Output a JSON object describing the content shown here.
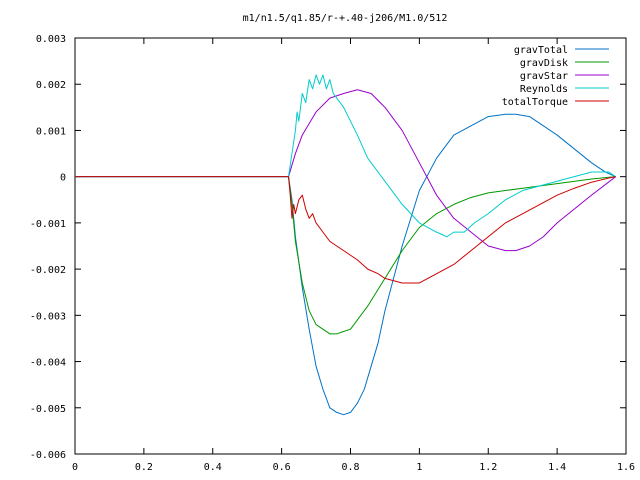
{
  "chart_data": {
    "type": "line",
    "title": "m1/n1.5/q1.85/r-+.40-j206/M1.0/512",
    "xlabel": "",
    "ylabel": "",
    "xlim": [
      0,
      1.6
    ],
    "ylim": [
      -0.006,
      0.003
    ],
    "x_ticks": [
      "0",
      "0.2",
      "0.4",
      "0.6",
      "0.8",
      "1",
      "1.2",
      "1.4",
      "1.6"
    ],
    "y_ticks": [
      "0.003",
      "0.002",
      "0.001",
      "0",
      "-0.001",
      "-0.002",
      "-0.003",
      "-0.004",
      "-0.005",
      "-0.006"
    ],
    "grid": false,
    "legend_position": "top-right",
    "series": [
      {
        "name": "gravTotal",
        "color": "#0072c6",
        "x": [
          0,
          0.6,
          0.62,
          0.63,
          0.64,
          0.66,
          0.68,
          0.7,
          0.72,
          0.74,
          0.76,
          0.78,
          0.8,
          0.82,
          0.84,
          0.86,
          0.88,
          0.9,
          0.95,
          1.0,
          1.05,
          1.1,
          1.15,
          1.2,
          1.25,
          1.28,
          1.32,
          1.36,
          1.4,
          1.45,
          1.5,
          1.54,
          1.57
        ],
        "y": [
          0,
          0,
          0,
          -0.0005,
          -0.0013,
          -0.0024,
          -0.0033,
          -0.0041,
          -0.0046,
          -0.005,
          -0.0051,
          -0.00515,
          -0.0051,
          -0.0049,
          -0.0046,
          -0.0041,
          -0.0036,
          -0.0029,
          -0.0015,
          -0.0003,
          0.0004,
          0.0009,
          0.0011,
          0.0013,
          0.00135,
          0.00135,
          0.0013,
          0.0011,
          0.0009,
          0.0006,
          0.0003,
          0.0001,
          0
        ]
      },
      {
        "name": "gravDisk",
        "color": "#009900",
        "x": [
          0,
          0.6,
          0.62,
          0.63,
          0.64,
          0.66,
          0.68,
          0.7,
          0.72,
          0.74,
          0.76,
          0.78,
          0.8,
          0.82,
          0.85,
          0.9,
          0.95,
          1.0,
          1.05,
          1.1,
          1.15,
          1.2,
          1.3,
          1.4,
          1.5,
          1.57
        ],
        "y": [
          0,
          0,
          0,
          -0.0006,
          -0.0014,
          -0.0023,
          -0.0029,
          -0.0032,
          -0.0033,
          -0.0034,
          -0.0034,
          -0.00335,
          -0.0033,
          -0.0031,
          -0.0028,
          -0.0022,
          -0.0016,
          -0.0011,
          -0.0008,
          -0.0006,
          -0.00045,
          -0.00035,
          -0.00025,
          -0.00015,
          -5e-05,
          0
        ]
      },
      {
        "name": "gravStar",
        "color": "#9900cc",
        "x": [
          0,
          0.6,
          0.62,
          0.64,
          0.66,
          0.7,
          0.74,
          0.78,
          0.82,
          0.86,
          0.9,
          0.95,
          1.0,
          1.05,
          1.1,
          1.15,
          1.2,
          1.25,
          1.28,
          1.32,
          1.36,
          1.4,
          1.45,
          1.5,
          1.57
        ],
        "y": [
          0,
          0,
          0,
          0.0005,
          0.0009,
          0.0014,
          0.0017,
          0.0018,
          0.00188,
          0.0018,
          0.0015,
          0.001,
          0.0003,
          -0.0004,
          -0.0009,
          -0.0012,
          -0.0015,
          -0.0016,
          -0.0016,
          -0.0015,
          -0.0013,
          -0.001,
          -0.0007,
          -0.0004,
          0
        ]
      },
      {
        "name": "Reynolds",
        "color": "#00cccc",
        "x": [
          0,
          0.6,
          0.62,
          0.63,
          0.64,
          0.645,
          0.65,
          0.66,
          0.67,
          0.68,
          0.69,
          0.7,
          0.71,
          0.72,
          0.73,
          0.74,
          0.75,
          0.76,
          0.78,
          0.8,
          0.82,
          0.85,
          0.9,
          0.95,
          1.0,
          1.05,
          1.08,
          1.1,
          1.13,
          1.16,
          1.2,
          1.25,
          1.3,
          1.35,
          1.4,
          1.45,
          1.5,
          1.55,
          1.57
        ],
        "y": [
          0,
          0,
          0,
          0.0005,
          0.001,
          0.0014,
          0.0012,
          0.0018,
          0.0016,
          0.0021,
          0.0019,
          0.0022,
          0.002,
          0.0022,
          0.0019,
          0.0021,
          0.0018,
          0.0017,
          0.0015,
          0.0012,
          0.0009,
          0.0004,
          -0.0001,
          -0.0006,
          -0.001,
          -0.0012,
          -0.0013,
          -0.0012,
          -0.0012,
          -0.001,
          -0.0008,
          -0.0005,
          -0.0003,
          -0.0002,
          -0.0001,
          0.0,
          0.0001,
          0.0001,
          0
        ]
      },
      {
        "name": "totalTorque",
        "color": "#cc0000",
        "x": [
          0,
          0.6,
          0.62,
          0.625,
          0.63,
          0.635,
          0.64,
          0.65,
          0.66,
          0.67,
          0.68,
          0.69,
          0.7,
          0.72,
          0.74,
          0.76,
          0.78,
          0.8,
          0.82,
          0.85,
          0.88,
          0.9,
          0.95,
          1.0,
          1.05,
          1.1,
          1.15,
          1.2,
          1.25,
          1.3,
          1.35,
          1.4,
          1.45,
          1.5,
          1.55,
          1.57
        ],
        "y": [
          0,
          0,
          0,
          -0.0004,
          -0.0009,
          -0.0006,
          -0.0008,
          -0.0005,
          -0.0004,
          -0.0007,
          -0.0009,
          -0.0008,
          -0.001,
          -0.0012,
          -0.0014,
          -0.0015,
          -0.0016,
          -0.0017,
          -0.0018,
          -0.002,
          -0.0021,
          -0.0022,
          -0.0023,
          -0.0023,
          -0.0021,
          -0.0019,
          -0.0016,
          -0.0013,
          -0.001,
          -0.0008,
          -0.0006,
          -0.0004,
          -0.00025,
          -0.00012,
          -3e-05,
          0
        ]
      }
    ]
  }
}
